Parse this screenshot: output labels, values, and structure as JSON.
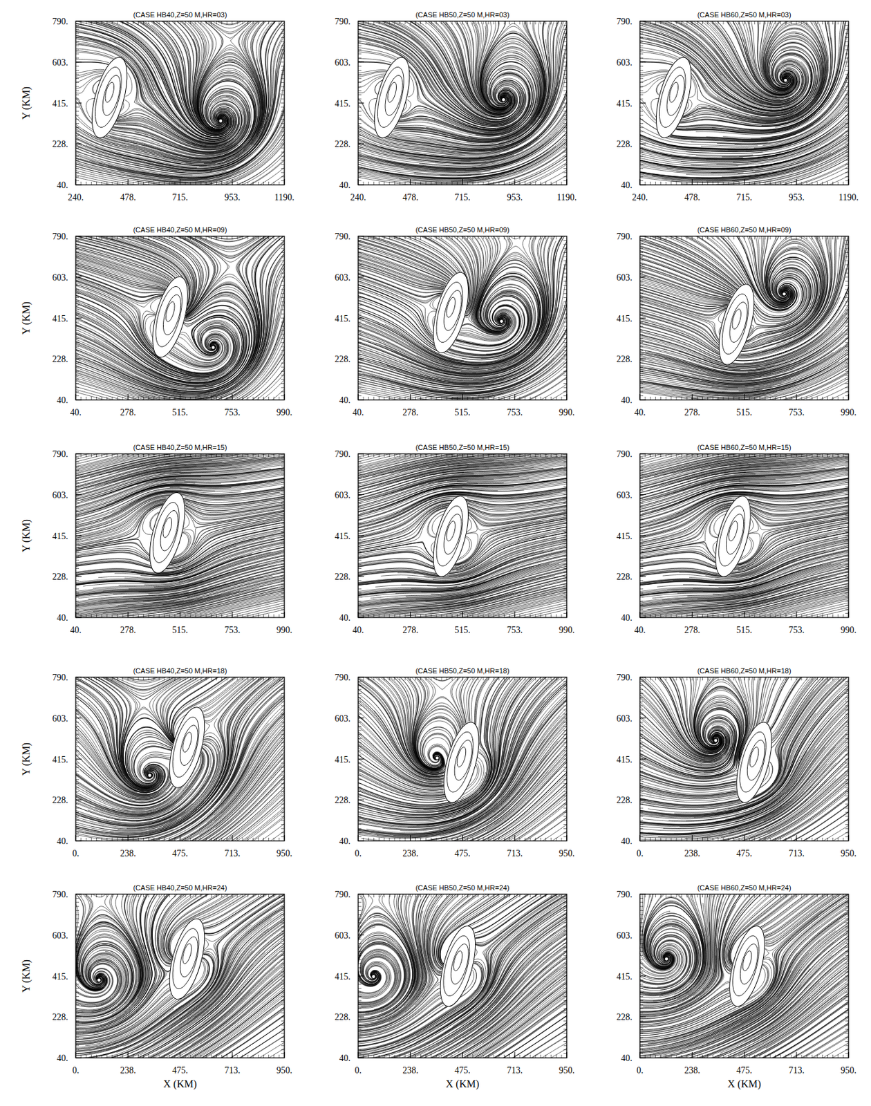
{
  "chart_data": [
    {
      "type": "streamline",
      "title": "(CASE HB40,Z=50 M,HR=03)",
      "y_label": "Y (KM)",
      "xlim": [
        240,
        1190
      ],
      "ylim": [
        40,
        790
      ],
      "xticks": [
        {
          "value": 240,
          "label": "240."
        },
        {
          "value": 478,
          "label": "478."
        },
        {
          "value": 715,
          "label": "715."
        },
        {
          "value": 953,
          "label": "953."
        },
        {
          "value": 1190,
          "label": "1190."
        }
      ],
      "yticks": [
        {
          "value": 40,
          "label": "40."
        },
        {
          "value": 228,
          "label": "228."
        },
        {
          "value": 415,
          "label": "415."
        },
        {
          "value": 603,
          "label": "603."
        },
        {
          "value": 790,
          "label": "790."
        }
      ],
      "vortex": [
        900,
        333
      ],
      "island": {
        "x": 394,
        "y": 440,
        "width": 130,
        "height": 380
      }
    },
    {
      "type": "streamline",
      "title": "(CASE HB50,Z=50 M,HR=03)",
      "xlim": [
        240,
        1190
      ],
      "ylim": [
        40,
        790
      ],
      "xticks": [
        {
          "value": 240,
          "label": "240."
        },
        {
          "value": 478,
          "label": "478."
        },
        {
          "value": 715,
          "label": "715."
        },
        {
          "value": 953,
          "label": "953."
        },
        {
          "value": 1190,
          "label": "1190."
        }
      ],
      "yticks": [
        {
          "value": 40,
          "label": "40."
        },
        {
          "value": 228,
          "label": "228."
        },
        {
          "value": 415,
          "label": "415."
        },
        {
          "value": 603,
          "label": "603."
        },
        {
          "value": 790,
          "label": "790."
        }
      ],
      "vortex": [
        902,
        430
      ],
      "island": {
        "x": 394,
        "y": 440,
        "width": 130,
        "height": 380
      }
    },
    {
      "type": "streamline",
      "title": "(CASE HB60,Z=50 M,HR=03)",
      "xlim": [
        240,
        1190
      ],
      "ylim": [
        40,
        790
      ],
      "xticks": [
        {
          "value": 240,
          "label": "240."
        },
        {
          "value": 478,
          "label": "478."
        },
        {
          "value": 715,
          "label": "715."
        },
        {
          "value": 953,
          "label": "953."
        },
        {
          "value": 1190,
          "label": "1190."
        }
      ],
      "yticks": [
        {
          "value": 40,
          "label": "40."
        },
        {
          "value": 228,
          "label": "228."
        },
        {
          "value": 415,
          "label": "415."
        },
        {
          "value": 603,
          "label": "603."
        },
        {
          "value": 790,
          "label": "790."
        }
      ],
      "vortex": [
        903,
        519
      ],
      "island": {
        "x": 394,
        "y": 440,
        "width": 130,
        "height": 380
      }
    },
    {
      "type": "streamline",
      "title": "(CASE HB40,Z=50 M,HR=09)",
      "y_label": "Y (KM)",
      "xlim": [
        40,
        990
      ],
      "ylim": [
        40,
        790
      ],
      "xticks": [
        {
          "value": 40,
          "label": "40."
        },
        {
          "value": 278,
          "label": "278."
        },
        {
          "value": 515,
          "label": "515."
        },
        {
          "value": 753,
          "label": "753."
        },
        {
          "value": 990,
          "label": "990."
        }
      ],
      "yticks": [
        {
          "value": 40,
          "label": "40."
        },
        {
          "value": 228,
          "label": "228."
        },
        {
          "value": 415,
          "label": "415."
        },
        {
          "value": 603,
          "label": "603."
        },
        {
          "value": 790,
          "label": "790."
        }
      ],
      "vortex": [
        666,
        280
      ],
      "island": {
        "x": 470,
        "y": 420,
        "width": 130,
        "height": 380
      }
    },
    {
      "type": "streamline",
      "title": "(CASE HB50,Z=50 M,HR=09)",
      "xlim": [
        40,
        990
      ],
      "ylim": [
        40,
        790
      ],
      "xticks": [
        {
          "value": 40,
          "label": "40."
        },
        {
          "value": 278,
          "label": "278."
        },
        {
          "value": 515,
          "label": "515."
        },
        {
          "value": 753,
          "label": "753."
        },
        {
          "value": 990,
          "label": "990."
        }
      ],
      "yticks": [
        {
          "value": 40,
          "label": "40."
        },
        {
          "value": 228,
          "label": "228."
        },
        {
          "value": 415,
          "label": "415."
        },
        {
          "value": 603,
          "label": "603."
        },
        {
          "value": 790,
          "label": "790."
        }
      ],
      "vortex": [
        693,
        400
      ],
      "island": {
        "x": 462,
        "y": 440,
        "width": 130,
        "height": 380
      }
    },
    {
      "type": "streamline",
      "title": "(CASE HB60,Z=50 M,HR=09)",
      "xlim": [
        40,
        990
      ],
      "ylim": [
        40,
        790
      ],
      "xticks": [
        {
          "value": 40,
          "label": "40."
        },
        {
          "value": 278,
          "label": "278."
        },
        {
          "value": 515,
          "label": "515."
        },
        {
          "value": 753,
          "label": "753."
        },
        {
          "value": 990,
          "label": "990."
        }
      ],
      "yticks": [
        {
          "value": 40,
          "label": "40."
        },
        {
          "value": 228,
          "label": "228."
        },
        {
          "value": 415,
          "label": "415."
        },
        {
          "value": 603,
          "label": "603."
        },
        {
          "value": 790,
          "label": "790."
        }
      ],
      "vortex": [
        697,
        525
      ],
      "island": {
        "x": 480,
        "y": 386,
        "width": 130,
        "height": 380
      }
    },
    {
      "type": "streamline",
      "title": "(CASE HB40,Z=50 M,HR=15)",
      "y_label": "Y (KM)",
      "xlim": [
        40,
        990
      ],
      "ylim": [
        40,
        790
      ],
      "xticks": [
        {
          "value": 40,
          "label": "40."
        },
        {
          "value": 278,
          "label": "278."
        },
        {
          "value": 515,
          "label": "515."
        },
        {
          "value": 753,
          "label": "753."
        },
        {
          "value": 990,
          "label": "990."
        }
      ],
      "yticks": [
        {
          "value": 40,
          "label": "40."
        },
        {
          "value": 228,
          "label": "228."
        },
        {
          "value": 415,
          "label": "415."
        },
        {
          "value": 603,
          "label": "603."
        },
        {
          "value": 790,
          "label": "790."
        }
      ],
      "vortex": null,
      "island": {
        "x": 457,
        "y": 428,
        "width": 130,
        "height": 380
      }
    },
    {
      "type": "streamline",
      "title": "(CASE HB50,Z=50 M,HR=15)",
      "xlim": [
        40,
        990
      ],
      "ylim": [
        40,
        790
      ],
      "xticks": [
        {
          "value": 40,
          "label": "40."
        },
        {
          "value": 278,
          "label": "278."
        },
        {
          "value": 515,
          "label": "515."
        },
        {
          "value": 753,
          "label": "753."
        },
        {
          "value": 990,
          "label": "990."
        }
      ],
      "yticks": [
        {
          "value": 40,
          "label": "40."
        },
        {
          "value": 228,
          "label": "228."
        },
        {
          "value": 415,
          "label": "415."
        },
        {
          "value": 603,
          "label": "603."
        },
        {
          "value": 790,
          "label": "790."
        }
      ],
      "vortex": null,
      "island": {
        "x": 462,
        "y": 412,
        "width": 130,
        "height": 380
      }
    },
    {
      "type": "streamline",
      "title": "(CASE HB60,Z=50 M,HR=15)",
      "xlim": [
        40,
        990
      ],
      "ylim": [
        40,
        790
      ],
      "xticks": [
        {
          "value": 40,
          "label": "40."
        },
        {
          "value": 278,
          "label": "278."
        },
        {
          "value": 515,
          "label": "515."
        },
        {
          "value": 753,
          "label": "753."
        },
        {
          "value": 990,
          "label": "990."
        }
      ],
      "yticks": [
        {
          "value": 40,
          "label": "40."
        },
        {
          "value": 228,
          "label": "228."
        },
        {
          "value": 415,
          "label": "415."
        },
        {
          "value": 603,
          "label": "603."
        },
        {
          "value": 790,
          "label": "790."
        }
      ],
      "vortex": null,
      "island": {
        "x": 464,
        "y": 412,
        "width": 130,
        "height": 380
      }
    },
    {
      "type": "streamline",
      "title": "(CASE HB40,Z=50 M,HR=18)",
      "y_label": "Y (KM)",
      "xlim": [
        0,
        950
      ],
      "ylim": [
        40,
        790
      ],
      "xticks": [
        {
          "value": 0,
          "label": "0."
        },
        {
          "value": 238,
          "label": "238."
        },
        {
          "value": 475,
          "label": "475."
        },
        {
          "value": 713,
          "label": "713."
        },
        {
          "value": 950,
          "label": "950."
        }
      ],
      "yticks": [
        {
          "value": 40,
          "label": "40."
        },
        {
          "value": 228,
          "label": "228."
        },
        {
          "value": 415,
          "label": "415."
        },
        {
          "value": 603,
          "label": "603."
        },
        {
          "value": 790,
          "label": "790."
        }
      ],
      "vortex": [
        337,
        340
      ],
      "island": {
        "x": 507,
        "y": 468,
        "width": 130,
        "height": 380
      }
    },
    {
      "type": "streamline",
      "title": "(CASE HB50,Z=50 M,HR=18)",
      "xlim": [
        0,
        950
      ],
      "ylim": [
        40,
        790
      ],
      "xticks": [
        {
          "value": 0,
          "label": "0."
        },
        {
          "value": 238,
          "label": "238."
        },
        {
          "value": 475,
          "label": "475."
        },
        {
          "value": 713,
          "label": "713."
        },
        {
          "value": 950,
          "label": "950."
        }
      ],
      "yticks": [
        {
          "value": 40,
          "label": "40."
        },
        {
          "value": 228,
          "label": "228."
        },
        {
          "value": 415,
          "label": "415."
        },
        {
          "value": 603,
          "label": "603."
        },
        {
          "value": 790,
          "label": "790."
        }
      ],
      "vortex": [
        360,
        420
      ],
      "island": {
        "x": 470,
        "y": 400,
        "width": 130,
        "height": 380
      }
    },
    {
      "type": "streamline",
      "title": "(CASE HB60,Z=50 M,HR=18)",
      "xlim": [
        0,
        950
      ],
      "ylim": [
        40,
        790
      ],
      "xticks": [
        {
          "value": 0,
          "label": "0."
        },
        {
          "value": 238,
          "label": "238."
        },
        {
          "value": 475,
          "label": "475."
        },
        {
          "value": 713,
          "label": "713."
        },
        {
          "value": 950,
          "label": "950."
        }
      ],
      "yticks": [
        {
          "value": 40,
          "label": "40."
        },
        {
          "value": 228,
          "label": "228."
        },
        {
          "value": 415,
          "label": "415."
        },
        {
          "value": 603,
          "label": "603."
        },
        {
          "value": 790,
          "label": "790."
        }
      ],
      "vortex": [
        345,
        500
      ],
      "island": {
        "x": 520,
        "y": 400,
        "width": 130,
        "height": 380
      }
    },
    {
      "type": "streamline",
      "title": "(CASE HB40,Z=50 M,HR=24)",
      "x_label": "X (KM)",
      "y_label": "Y (KM)",
      "xlim": [
        0,
        950
      ],
      "ylim": [
        40,
        790
      ],
      "xticks": [
        {
          "value": 0,
          "label": "0."
        },
        {
          "value": 238,
          "label": "238."
        },
        {
          "value": 475,
          "label": "475."
        },
        {
          "value": 713,
          "label": "713."
        },
        {
          "value": 950,
          "label": "950."
        }
      ],
      "yticks": [
        {
          "value": 40,
          "label": "40."
        },
        {
          "value": 228,
          "label": "228."
        },
        {
          "value": 415,
          "label": "415."
        },
        {
          "value": 603,
          "label": "603."
        },
        {
          "value": 790,
          "label": "790."
        }
      ],
      "vortex": [
        106,
        396
      ],
      "island": {
        "x": 507,
        "y": 493,
        "width": 130,
        "height": 380
      }
    },
    {
      "type": "streamline",
      "title": "(CASE HB50,Z=50 M,HR=24)",
      "x_label": "X (KM)",
      "xlim": [
        0,
        950
      ],
      "ylim": [
        40,
        790
      ],
      "xticks": [
        {
          "value": 0,
          "label": "0."
        },
        {
          "value": 238,
          "label": "238."
        },
        {
          "value": 475,
          "label": "475."
        },
        {
          "value": 713,
          "label": "713."
        },
        {
          "value": 950,
          "label": "950."
        }
      ],
      "yticks": [
        {
          "value": 40,
          "label": "40."
        },
        {
          "value": 228,
          "label": "228."
        },
        {
          "value": 415,
          "label": "415."
        },
        {
          "value": 603,
          "label": "603."
        },
        {
          "value": 790,
          "label": "790."
        }
      ],
      "vortex": [
        70,
        412
      ],
      "island": {
        "x": 454,
        "y": 460,
        "width": 130,
        "height": 380
      }
    },
    {
      "type": "streamline",
      "title": "(CASE HB60,Z=50 M,HR=24)",
      "x_label": "X (KM)",
      "xlim": [
        0,
        950
      ],
      "ylim": [
        40,
        790
      ],
      "xticks": [
        {
          "value": 0,
          "label": "0."
        },
        {
          "value": 238,
          "label": "238."
        },
        {
          "value": 475,
          "label": "475."
        },
        {
          "value": 713,
          "label": "713."
        },
        {
          "value": 950,
          "label": "950."
        }
      ],
      "yticks": [
        {
          "value": 40,
          "label": "40."
        },
        {
          "value": 228,
          "label": "228."
        },
        {
          "value": 415,
          "label": "415."
        },
        {
          "value": 603,
          "label": "603."
        },
        {
          "value": 790,
          "label": "790."
        }
      ],
      "vortex": [
        121,
        493
      ],
      "island": {
        "x": 488,
        "y": 460,
        "width": 130,
        "height": 380
      }
    }
  ]
}
